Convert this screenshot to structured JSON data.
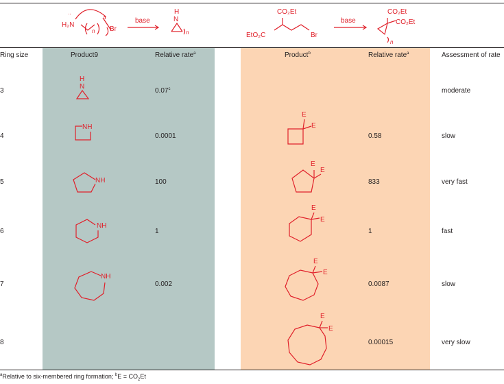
{
  "reactions": {
    "amine_reagent": "H₂N",
    "amine_leaving_group": "Br",
    "index_n": "n",
    "amine_product_label_H": "H",
    "amine_product_label_N": "N",
    "base_label_1": "base",
    "ester_top": "CO₂Et",
    "ester_left": "EtO₂C",
    "ester_leaving_group": "Br",
    "base_label_2": "base",
    "product_ester_top": "CO₂Et",
    "product_ester_right": "CO₂Et"
  },
  "table": {
    "headers": {
      "ring_size": "Ring size",
      "product_a": "Product9",
      "rate_a": "Relative rate",
      "rate_a_note": "a",
      "product_b": "Product",
      "product_b_note": "b",
      "rate_b": "Relative rate",
      "rate_b_note": "a",
      "assessment": "Assessment of rate"
    },
    "rows": [
      {
        "ring_size": "3",
        "rate_a": "0.07",
        "rate_a_note": "c",
        "rate_b": "",
        "assessment": "moderate"
      },
      {
        "ring_size": "4",
        "rate_a": "0.0001",
        "rate_b": "0.58",
        "assessment": "slow"
      },
      {
        "ring_size": "5",
        "rate_a": "100",
        "rate_b": "833",
        "assessment": "very fast"
      },
      {
        "ring_size": "6",
        "rate_a": "1",
        "rate_b": "1",
        "assessment": "fast"
      },
      {
        "ring_size": "7",
        "rate_a": "0.002",
        "rate_b": "0.0087",
        "assessment": "slow"
      },
      {
        "ring_size": "8",
        "rate_a": "",
        "rate_b": "0.00015",
        "assessment": "very slow"
      }
    ],
    "structure_labels": {
      "amine_H": "H",
      "amine_N": "N",
      "amine_NH": "NH",
      "ester_E": "E"
    }
  },
  "footnote": {
    "a_mark": "a",
    "a_text": "Relative to six-membered ring formation; ",
    "b_mark": "b",
    "b_text": "E = CO",
    "b_sub": "2",
    "b_tail": "Et"
  },
  "colors": {
    "structure_red": "#e0202a",
    "panel_a": "#b5c8c5",
    "panel_b": "#fcd5b4",
    "text": "#231f20"
  }
}
